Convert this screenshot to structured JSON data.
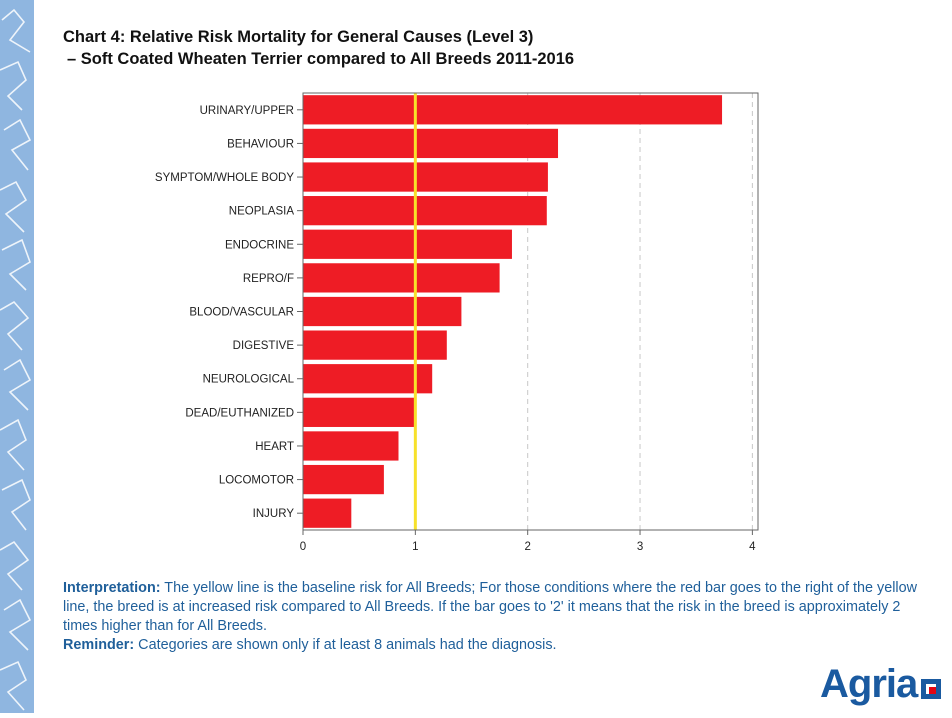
{
  "title": {
    "line1": "Chart 4: Relative Risk Mortality for General Causes (Level 3)",
    "line2": "–  Soft Coated Wheaten Terrier compared to All Breeds 2011-2016"
  },
  "chart_data": {
    "type": "bar",
    "orientation": "horizontal",
    "categories": [
      "URINARY/UPPER",
      "BEHAVIOUR",
      "SYMPTOM/WHOLE BODY",
      "NEOPLASIA",
      "ENDOCRINE",
      "REPRO/F",
      "BLOOD/VASCULAR",
      "DIGESTIVE",
      "NEUROLOGICAL",
      "DEAD/EUTHANIZED",
      "HEART",
      "LOCOMOTOR",
      "INJURY"
    ],
    "values": [
      3.73,
      2.27,
      2.18,
      2.17,
      1.86,
      1.75,
      1.41,
      1.28,
      1.15,
      1.0,
      0.85,
      0.72,
      0.43
    ],
    "xlim": [
      0,
      4.05
    ],
    "xticks": [
      0,
      1,
      2,
      3,
      4
    ],
    "xtick_labels": [
      "0",
      "1",
      "2",
      "3",
      "4"
    ],
    "baseline": 1,
    "grid": "vertical dashed",
    "bar_color": "#ee1c25",
    "baseline_color": "#f7e12a"
  },
  "notes": {
    "interpretation_label": "Interpretation:",
    "interpretation_text": " The yellow line is the baseline risk for All Breeds; For those conditions where the red bar goes to the right of the yellow line, the breed is at increased risk compared to All Breeds. If the bar goes to '2' it means that the risk in the breed is approximately 2 times higher than for All Breeds.",
    "reminder_label": "Reminder:",
    "reminder_text": " Categories are shown only if at least 8 animals had the diagnosis."
  },
  "logo": {
    "text": "Agria"
  }
}
